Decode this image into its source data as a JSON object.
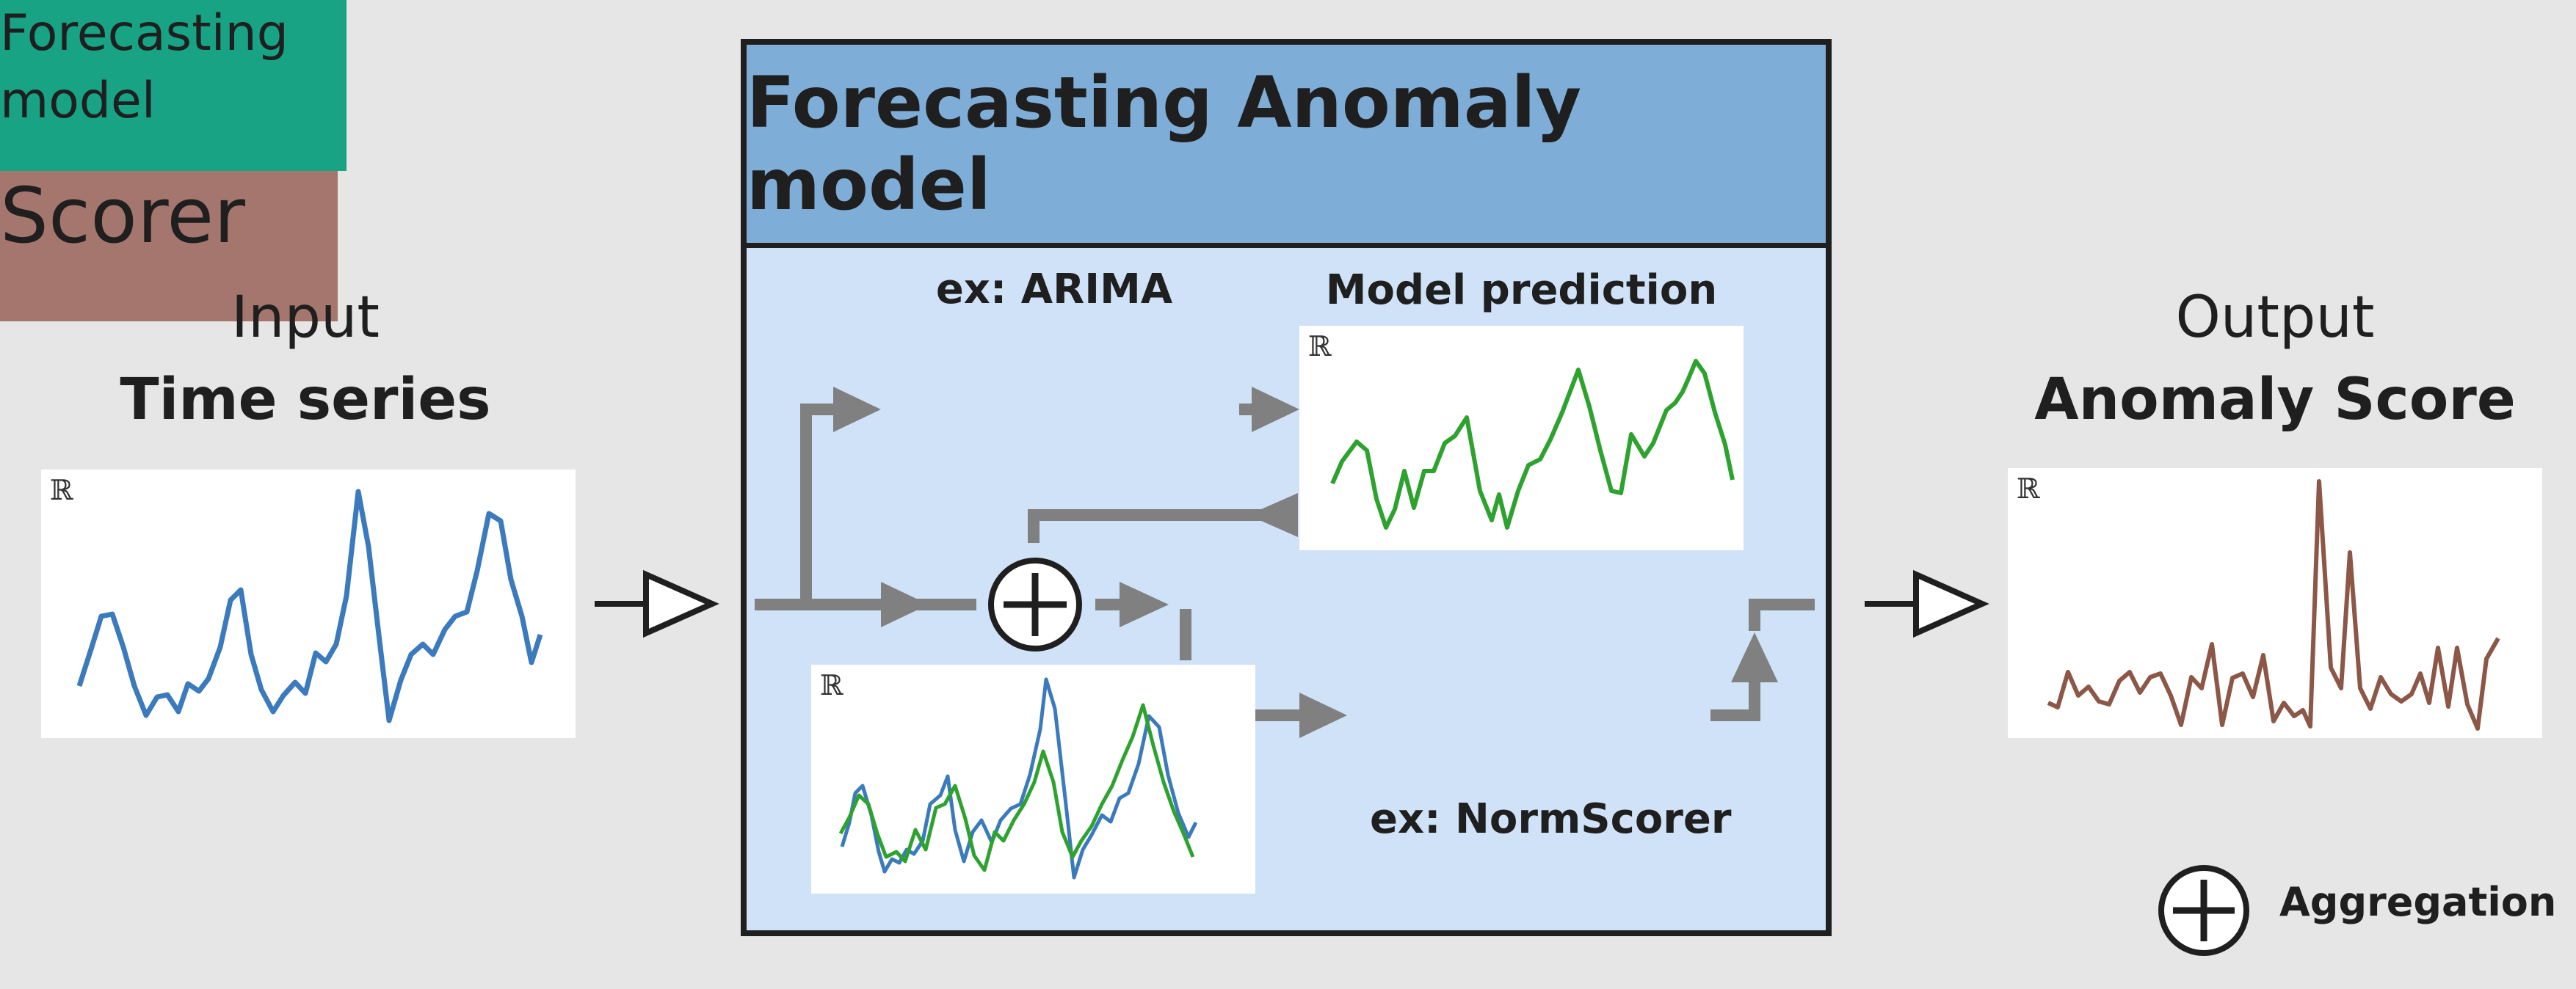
{
  "input": {
    "top": "Input",
    "title": "Time series"
  },
  "output": {
    "top": "Output",
    "title": "Anomaly Score"
  },
  "model": {
    "title": "Forecasting Anomaly model",
    "forecaster_example": "ex: ARIMA",
    "forecaster_label": "Forecasting model",
    "prediction_label": "Model prediction",
    "scorer_label": "Scorer",
    "scorer_example": "ex: NormScorer"
  },
  "legend": {
    "aggregation": "Aggregation"
  },
  "real_symbol": "ℝ",
  "colors": {
    "background": "#e6e6e6",
    "model_header": "#7eaed8",
    "model_body": "#cfe2f7",
    "forecaster": "#17a384",
    "scorer": "#a5766e",
    "input_series": "#3a7abd",
    "prediction_series": "#2ea22e",
    "score_series": "#8c5746",
    "arrow": "#808080"
  },
  "icons": [
    "aggregation-icon",
    "arrow-icon"
  ]
}
